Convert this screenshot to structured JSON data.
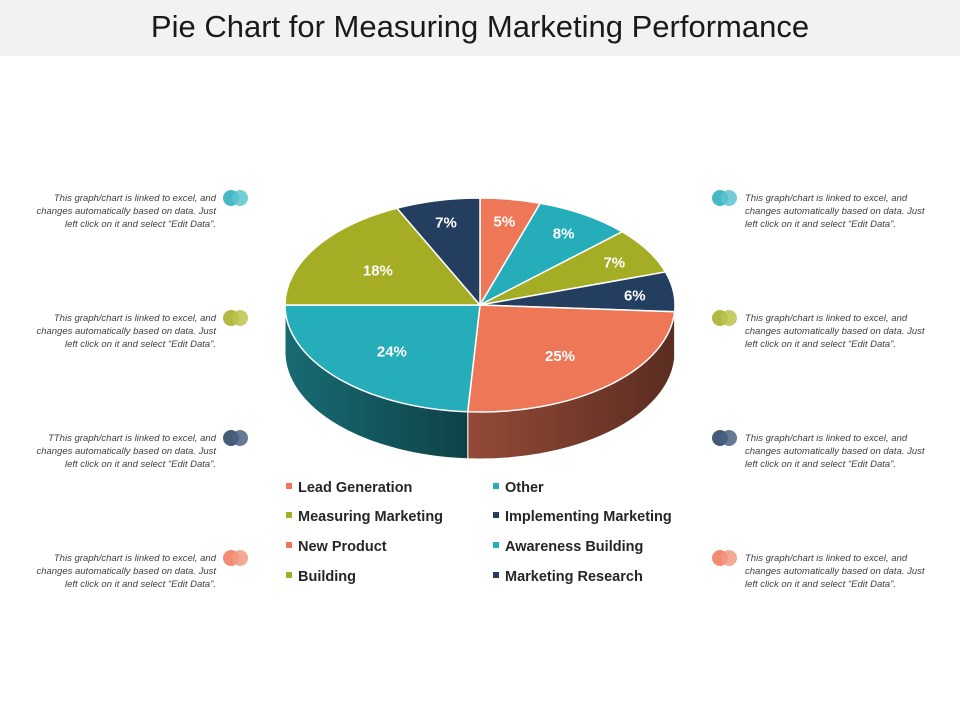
{
  "title": "Pie Chart for Measuring Marketing Performance",
  "colors": {
    "orange": "#EE7758",
    "teal": "#26ADBA",
    "olive": "#A4AD23",
    "navy": "#243E5F"
  },
  "notes": {
    "left": [
      {
        "text": "This graph/chart is linked to excel, and changes automatically based on data. Just left click on it and select “Edit Data”.",
        "icon": "teal-circles-icon"
      },
      {
        "text": "This graph/chart is linked to excel, and changes automatically based on data. Just left click on it and select “Edit Data”.",
        "icon": "olive-circles-icon"
      },
      {
        "text": "TThis graph/chart is linked to excel, and changes automatically based on data. Just left click on it and select “Edit Data”.",
        "icon": "navy-circles-icon"
      },
      {
        "text": "This graph/chart is linked to excel, and changes automatically based on data. Just left click on it and select “Edit Data”.",
        "icon": "orange-circles-icon"
      }
    ],
    "right": [
      {
        "text": "This graph/chart is linked to excel, and changes automatically based on data. Just left click on it and select “Edit Data”.",
        "icon": "teal-circles-icon"
      },
      {
        "text": "This graph/chart is linked to excel, and changes automatically based on data. Just left click on it and select “Edit Data”.",
        "icon": "olive-circles-icon"
      },
      {
        "text": "This graph/chart is linked to excel, and changes automatically based on data. Just left click on it and select “Edit Data”.",
        "icon": "navy-circles-icon"
      },
      {
        "text": "This graph/chart is linked to excel, and changes automatically based on data. Just left click on it and select “Edit Data”.",
        "icon": "orange-circles-icon"
      }
    ]
  },
  "chart_data": {
    "type": "pie",
    "style": "3d",
    "title": "Pie Chart for Measuring Marketing Performance",
    "slices": [
      {
        "label": "5%",
        "value": 5,
        "color": "#EE7758"
      },
      {
        "label": "8%",
        "value": 8,
        "color": "#26ADBA"
      },
      {
        "label": "7%",
        "value": 7,
        "color": "#A4AD23"
      },
      {
        "label": "6%",
        "value": 6,
        "color": "#243E5F"
      },
      {
        "label": "25%",
        "value": 25,
        "color": "#EE7758"
      },
      {
        "label": "24%",
        "value": 24,
        "color": "#26ADBA"
      },
      {
        "label": "18%",
        "value": 18,
        "color": "#A4AD23"
      },
      {
        "label": "7%",
        "value": 7,
        "color": "#243E5F"
      }
    ],
    "legend": [
      {
        "name": "Lead Generation",
        "color": "#EE7758"
      },
      {
        "name": "Other",
        "color": "#26ADBA"
      },
      {
        "name": "Measuring Marketing",
        "color": "#A4AD23"
      },
      {
        "name": "Implementing Marketing",
        "color": "#243E5F"
      },
      {
        "name": "New Product",
        "color": "#EE7758"
      },
      {
        "name": "Awareness Building",
        "color": "#26ADBA"
      },
      {
        "name": "Building",
        "color": "#A4AD23"
      },
      {
        "name": "Marketing Research",
        "color": "#243E5F"
      }
    ],
    "legend_position": "bottom"
  }
}
